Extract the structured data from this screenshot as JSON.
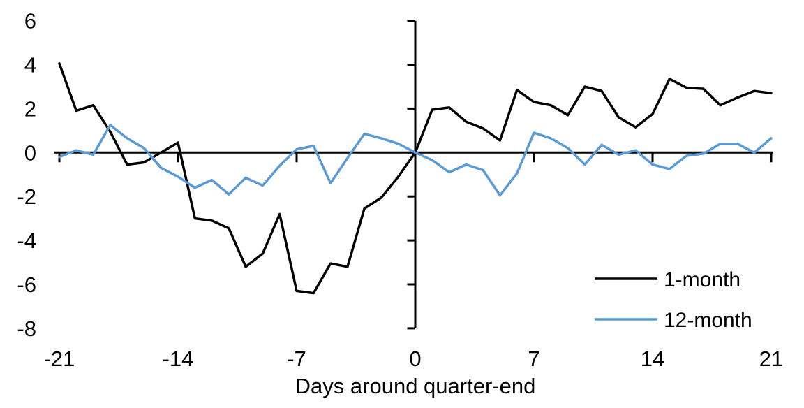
{
  "chart_data": {
    "type": "line",
    "title": "",
    "xlabel": "Days around quarter-end",
    "ylabel": "",
    "xlim": [
      -21,
      21
    ],
    "ylim": [
      -8,
      6
    ],
    "x_ticks": [
      -21,
      -14,
      -7,
      0,
      7,
      14,
      21
    ],
    "y_ticks": [
      6,
      4,
      2,
      0,
      -2,
      -4,
      -6,
      -8
    ],
    "grid": false,
    "legend_position": "lower-right",
    "axis_color": "#000000",
    "background": "#FFFFFF",
    "x": [
      -21,
      -20,
      -19,
      -18,
      -17,
      -16,
      -15,
      -14,
      -13,
      -12,
      -11,
      -10,
      -9,
      -8,
      -7,
      -6,
      -5,
      -4,
      -3,
      -2,
      -1,
      0,
      1,
      2,
      3,
      4,
      5,
      6,
      7,
      8,
      9,
      10,
      11,
      12,
      13,
      14,
      15,
      16,
      17,
      18,
      19,
      20,
      21
    ],
    "series": [
      {
        "name": "1-month",
        "color": "#000000",
        "values": [
          4.05,
          1.9,
          2.15,
          0.95,
          -0.55,
          -0.45,
          0.0,
          0.45,
          -3.0,
          -3.1,
          -3.45,
          -5.2,
          -4.6,
          -2.8,
          -6.3,
          -6.4,
          -5.05,
          -5.2,
          -2.55,
          -2.05,
          -1.1,
          0.0,
          1.95,
          2.05,
          1.4,
          1.1,
          0.55,
          2.85,
          2.3,
          2.15,
          1.7,
          3.0,
          2.8,
          1.6,
          1.15,
          1.75,
          3.35,
          2.95,
          2.9,
          2.15,
          2.5,
          2.8,
          2.7
        ]
      },
      {
        "name": "12-month",
        "color": "#5B9BD5",
        "values": [
          -0.2,
          0.1,
          -0.1,
          1.25,
          0.65,
          0.2,
          -0.7,
          -1.1,
          -1.6,
          -1.25,
          -1.9,
          -1.15,
          -1.5,
          -0.6,
          0.15,
          0.3,
          -1.4,
          -0.25,
          0.85,
          0.65,
          0.4,
          0.0,
          -0.35,
          -0.9,
          -0.55,
          -0.8,
          -1.95,
          -0.95,
          0.9,
          0.65,
          0.2,
          -0.55,
          0.35,
          -0.1,
          0.1,
          -0.55,
          -0.75,
          -0.15,
          -0.05,
          0.4,
          0.4,
          0.0,
          0.65
        ]
      }
    ]
  }
}
